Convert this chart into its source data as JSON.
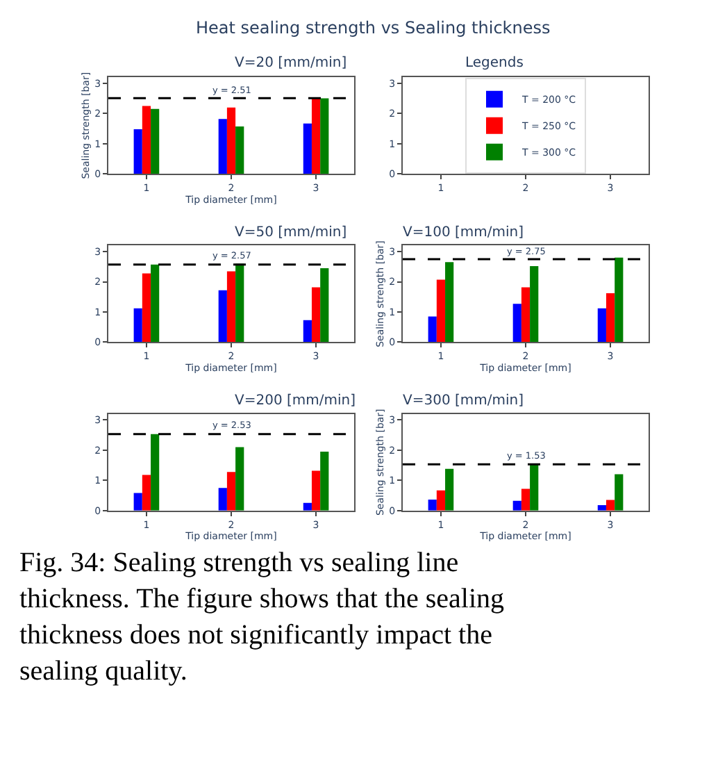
{
  "chart_data": [
    {
      "type": "bar",
      "title": "V=20 [mm/min]",
      "xlabel": "Tip diameter [mm]",
      "ylabel": "Sealing strength [bar]",
      "categories": [
        "1",
        "2",
        "3"
      ],
      "series": [
        {
          "color": "#0000ff",
          "values": [
            1.48,
            1.82,
            1.67
          ]
        },
        {
          "color": "#ff0000",
          "values": [
            2.25,
            2.2,
            2.5
          ]
        },
        {
          "color": "#008000",
          "values": [
            2.15,
            1.57,
            2.5
          ]
        }
      ],
      "ylim": [
        0,
        3.2
      ],
      "yticks": [
        0,
        1,
        2,
        3
      ],
      "ref_lines": [
        {
          "axis": "y",
          "value": 2.51,
          "label": "y = 2.51",
          "color": "#000000",
          "line_style": "dashed"
        }
      ],
      "annotations": [
        "Heat sealing strength vs Sealing thickness",
        "Fig. 34: Sealing strength vs sealing line thickness. The figure shows that the sealing thickness does not significantly impact the sealing quality."
      ]
    },
    {
      "type": "bar",
      "title": "Legends",
      "categories": [
        "1",
        "2",
        "3"
      ],
      "series": [
        {
          "name": "T = 200 °C",
          "color": "#0000ff",
          "values": [
            null,
            null,
            null
          ]
        },
        {
          "name": "T = 250 °C",
          "color": "#ff0000",
          "values": [
            null,
            null,
            null
          ]
        },
        {
          "name": "T = 300 °C",
          "color": "#008000",
          "values": [
            null,
            null,
            null
          ]
        }
      ],
      "ylim": [
        0,
        3.2
      ],
      "yticks": [
        0,
        1,
        2,
        3
      ],
      "legend": "center"
    },
    {
      "type": "bar",
      "title": "V=50 [mm/min]",
      "xlabel": "Tip diameter [mm]",
      "categories": [
        "1",
        "2",
        "3"
      ],
      "series": [
        {
          "color": "#0000ff",
          "values": [
            1.12,
            1.72,
            0.73
          ]
        },
        {
          "color": "#ff0000",
          "values": [
            2.28,
            2.35,
            1.82
          ]
        },
        {
          "color": "#008000",
          "values": [
            2.57,
            2.6,
            2.45
          ]
        }
      ],
      "ylim": [
        0,
        3.2
      ],
      "yticks": [
        0,
        1,
        2,
        3
      ],
      "ref_lines": [
        {
          "axis": "y",
          "value": 2.57,
          "label": "y = 2.57",
          "color": "#000000",
          "line_style": "dashed"
        }
      ]
    },
    {
      "type": "bar",
      "title": "V=100 [mm/min]",
      "xlabel": "Tip diameter [mm]",
      "ylabel": "Sealing strength [bar]",
      "categories": [
        "1",
        "2",
        "3"
      ],
      "series": [
        {
          "color": "#0000ff",
          "values": [
            0.85,
            1.27,
            1.12
          ]
        },
        {
          "color": "#ff0000",
          "values": [
            2.07,
            1.82,
            1.62
          ]
        },
        {
          "color": "#008000",
          "values": [
            2.65,
            2.52,
            2.8
          ]
        }
      ],
      "ylim": [
        0,
        3.2
      ],
      "yticks": [
        0,
        1,
        2,
        3
      ],
      "ref_lines": [
        {
          "axis": "y",
          "value": 2.75,
          "label": "y = 2.75",
          "color": "#000000",
          "line_style": "dashed"
        }
      ]
    },
    {
      "type": "bar",
      "title": "V=200 [mm/min]",
      "xlabel": "Tip diameter [mm]",
      "categories": [
        "1",
        "2",
        "3"
      ],
      "series": [
        {
          "color": "#0000ff",
          "values": [
            0.58,
            0.75,
            0.25
          ]
        },
        {
          "color": "#ff0000",
          "values": [
            1.18,
            1.28,
            1.32
          ]
        },
        {
          "color": "#008000",
          "values": [
            2.53,
            2.1,
            1.95
          ]
        }
      ],
      "ylim": [
        0,
        3.2
      ],
      "yticks": [
        0,
        1,
        2,
        3
      ],
      "ref_lines": [
        {
          "axis": "y",
          "value": 2.53,
          "label": "y = 2.53",
          "color": "#000000",
          "line_style": "dashed"
        }
      ]
    },
    {
      "type": "bar",
      "title": "V=300 [mm/min]",
      "xlabel": "Tip diameter [mm]",
      "ylabel": "Sealing strength [bar]",
      "categories": [
        "1",
        "2",
        "3"
      ],
      "series": [
        {
          "color": "#0000ff",
          "values": [
            0.36,
            0.32,
            0.18
          ]
        },
        {
          "color": "#ff0000",
          "values": [
            0.67,
            0.72,
            0.35
          ]
        },
        {
          "color": "#008000",
          "values": [
            1.38,
            1.53,
            1.2
          ]
        }
      ],
      "ylim": [
        0,
        3.2
      ],
      "yticks": [
        0,
        1,
        2,
        3
      ],
      "ref_lines": [
        {
          "axis": "y",
          "value": 1.53,
          "label": "y = 1.53",
          "color": "#000000",
          "line_style": "dashed"
        }
      ]
    }
  ]
}
